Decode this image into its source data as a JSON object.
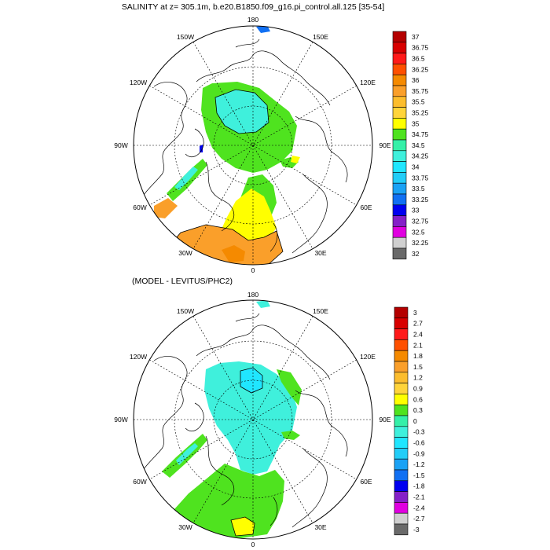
{
  "panels": [
    {
      "title": "SALINITY at z= 305.1m, b.e20.B1850.f09_g16.pi_control.all.125 [35-54]",
      "lon_labels": {
        "top": "180",
        "top_left": "150W",
        "top_right": "150E",
        "upper_left": "120W",
        "upper_right": "120E",
        "left": "90W",
        "right": "90E",
        "lower_left": "60W",
        "lower_right": "60E",
        "bottom_left": "30W",
        "bottom_right": "30E",
        "bottom": "0"
      },
      "colorbar": {
        "labels": [
          "37",
          "36.75",
          "36.5",
          "36.25",
          "36",
          "35.75",
          "35.5",
          "35.25",
          "35",
          "34.75",
          "34.5",
          "34.25",
          "34",
          "33.75",
          "33.5",
          "33.25",
          "33",
          "32.75",
          "32.5",
          "32.25",
          "32"
        ],
        "colors": [
          "#b40000",
          "#d80000",
          "#ff1a1a",
          "#ff5000",
          "#f58a00",
          "#fa9f2a",
          "#fcbd2d",
          "#ffd43a",
          "#ffff00",
          "#4fe31f",
          "#34f0a8",
          "#3ff0dc",
          "#20e6ff",
          "#22cdf8",
          "#1aa2f5",
          "#1170f3",
          "#0000f0",
          "#8520c8",
          "#e000e0",
          "#d0d0d0",
          "#6a6a6a"
        ]
      }
    },
    {
      "title": "(MODEL - LEVITUS/PHC2)",
      "lon_labels": {
        "top": "180",
        "top_left": "150W",
        "top_right": "150E",
        "upper_left": "120W",
        "upper_right": "120E",
        "left": "90W",
        "right": "90E",
        "lower_left": "60W",
        "lower_right": "60E",
        "bottom_left": "30W",
        "bottom_right": "30E",
        "bottom": "0"
      },
      "colorbar": {
        "labels": [
          "3",
          "2.7",
          "2.4",
          "2.1",
          "1.8",
          "1.5",
          "1.2",
          "0.9",
          "0.6",
          "0.3",
          "0",
          "-0.3",
          "-0.6",
          "-0.9",
          "-1.2",
          "-1.5",
          "-1.8",
          "-2.1",
          "-2.4",
          "-2.7",
          "-3"
        ],
        "colors": [
          "#b40000",
          "#d80000",
          "#ff1a1a",
          "#ff5000",
          "#f58a00",
          "#fa9f2a",
          "#fcbd2d",
          "#ffd43a",
          "#ffff00",
          "#4fe31f",
          "#34f0a8",
          "#3ff0dc",
          "#20e6ff",
          "#22cdf8",
          "#1aa2f5",
          "#1170f3",
          "#0000f0",
          "#8520c8",
          "#e000e0",
          "#d0d0d0",
          "#6a6a6a"
        ]
      }
    }
  ]
}
